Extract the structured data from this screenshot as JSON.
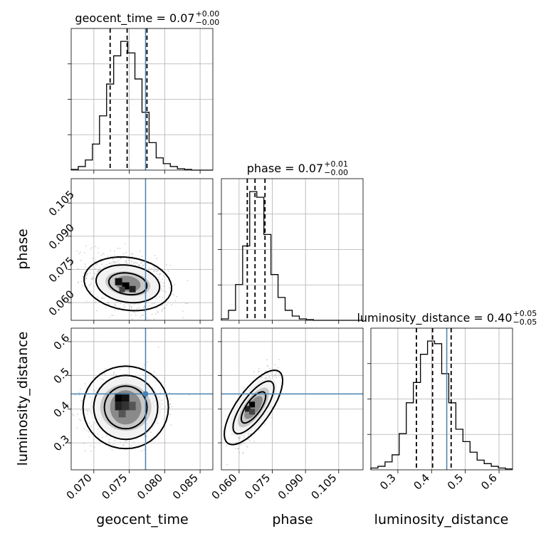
{
  "chart_data": {
    "type": "corner",
    "parameters": [
      "geocent_time",
      "phase",
      "luminosity_distance"
    ],
    "axis_labels": {
      "geocent_time": "geocent_time",
      "phase": "phase",
      "luminosity_distance": "luminosity_distance"
    },
    "ranges": {
      "geocent_time": [
        0.0668,
        0.0868
      ],
      "phase": [
        0.052,
        0.116
      ],
      "luminosity_distance": [
        0.22,
        0.64
      ]
    },
    "ticks": {
      "geocent_time": [
        0.07,
        0.075,
        0.08,
        0.085
      ],
      "phase": [
        0.06,
        0.075,
        0.09,
        0.105
      ],
      "luminosity_distance": [
        0.3,
        0.4,
        0.5,
        0.6
      ]
    },
    "tick_labels": {
      "geocent_time": [
        "0.070",
        "0.075",
        "0.080",
        "0.085"
      ],
      "phase": [
        "0.060",
        "0.075",
        "0.090",
        "0.105"
      ],
      "luminosity_distance": [
        "0.3",
        "0.4",
        "0.5",
        "0.6"
      ]
    },
    "truths": {
      "geocent_time": 0.0773,
      "phase": null,
      "luminosity_distance": 0.445
    },
    "quantiles": {
      "geocent_time": [
        0.0723,
        0.0747,
        0.0775
      ],
      "phase": [
        0.0637,
        0.0672,
        0.0717
      ],
      "luminosity_distance": [
        0.355,
        0.403,
        0.458
      ]
    },
    "titles": {
      "geocent_time": {
        "label": "geocent_time = 0.07",
        "plus": "+0.00",
        "minus": "−0.00"
      },
      "phase": {
        "label": "phase = 0.07",
        "plus": "+0.01",
        "minus": "−0.00"
      },
      "luminosity_distance": {
        "label": "luminosity_distance = 0.40",
        "plus": "+0.05",
        "minus": "−0.05"
      }
    },
    "histograms": {
      "geocent_time": {
        "bin_edges": [
          0.0668,
          0.0678,
          0.0688,
          0.0698,
          0.0708,
          0.0718,
          0.0728,
          0.0738,
          0.0748,
          0.0758,
          0.0768,
          0.0778,
          0.0788,
          0.0798,
          0.0808,
          0.0818,
          0.0828,
          0.0838,
          0.0848,
          0.0858,
          0.0868
        ],
        "counts": [
          1,
          5,
          14,
          36,
          75,
          119,
          158,
          178,
          162,
          126,
          80,
          38,
          17,
          9,
          5,
          2,
          1,
          0,
          0,
          0
        ]
      },
      "phase": {
        "bin_edges": [
          0.052,
          0.0552,
          0.0584,
          0.0616,
          0.0648,
          0.068,
          0.0712,
          0.0744,
          0.0776,
          0.0808,
          0.084,
          0.0872,
          0.0904,
          0.0936,
          0.0968,
          0.1,
          0.1032,
          0.1064,
          0.1096,
          0.1128,
          0.116
        ],
        "counts": [
          2,
          14,
          50,
          104,
          180,
          172,
          120,
          64,
          32,
          14,
          6,
          2,
          1,
          0,
          0,
          0,
          0,
          0,
          0,
          0
        ]
      },
      "luminosity_distance": {
        "bin_edges": [
          0.22,
          0.241,
          0.262,
          0.283,
          0.304,
          0.325,
          0.346,
          0.367,
          0.388,
          0.409,
          0.43,
          0.451,
          0.472,
          0.493,
          0.514,
          0.535,
          0.556,
          0.577,
          0.598,
          0.619,
          0.64
        ],
        "counts": [
          2,
          4,
          9,
          17,
          41,
          76,
          99,
          131,
          146,
          143,
          109,
          76,
          46,
          32,
          20,
          11,
          7,
          4,
          2,
          1
        ]
      }
    },
    "grid": true,
    "legend": "none"
  }
}
